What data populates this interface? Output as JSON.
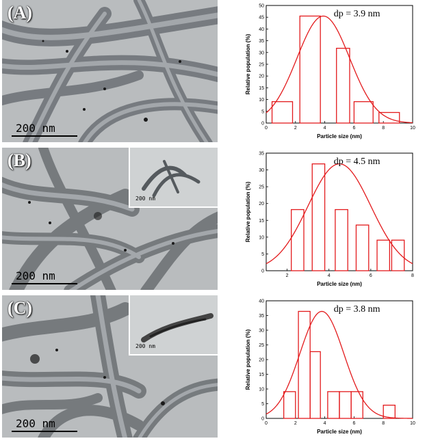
{
  "panels": [
    {
      "label": "(A)",
      "scale_label": "200 nm"
    },
    {
      "label": "(B)",
      "scale_label": "200 nm",
      "inset_scale_label": "200 nm"
    },
    {
      "label": "(C)",
      "scale_label": "200 nm",
      "inset_scale_label": "200 nm"
    }
  ],
  "colors": {
    "histogram": "#e31a1c",
    "tem_background": "#b9bcbe",
    "tube": "#6f7377"
  },
  "chart_data": [
    {
      "type": "bar",
      "annotation": "dp = 3.9 nm",
      "xlabel": "Particle size (nm)",
      "ylabel": "Relative population (%)",
      "xlim": [
        0,
        10
      ],
      "ylim": [
        0,
        50
      ],
      "xticks": [
        0,
        2,
        4,
        6,
        8,
        10
      ],
      "yticks": [
        0,
        5,
        10,
        15,
        20,
        25,
        30,
        35,
        40,
        45,
        50
      ],
      "bins": [
        [
          0.4,
          1.8
        ],
        [
          2.3,
          3.7
        ],
        [
          4.8,
          5.7
        ],
        [
          6.0,
          7.3
        ],
        [
          7.7,
          9.1
        ]
      ],
      "values": [
        9.1,
        45.5,
        31.8,
        9.1,
        4.5
      ],
      "fit": {
        "type": "gaussian",
        "mean": 3.9,
        "sigma": 1.8,
        "amplitude": 45.5
      }
    },
    {
      "type": "bar",
      "annotation": "dp = 4.5 nm",
      "xlabel": "Particle size (nm)",
      "ylabel": "Relative population (%)",
      "xlim": [
        1,
        8
      ],
      "ylim": [
        0,
        35
      ],
      "xticks": [
        2,
        4,
        6,
        8
      ],
      "yticks": [
        0,
        5,
        10,
        15,
        20,
        25,
        30,
        35
      ],
      "bins": [
        [
          2.2,
          2.8
        ],
        [
          3.2,
          3.8
        ],
        [
          4.3,
          4.9
        ],
        [
          5.3,
          5.9
        ],
        [
          6.3,
          6.9
        ],
        [
          7.0,
          7.6
        ]
      ],
      "values": [
        18.2,
        31.8,
        18.2,
        13.6,
        9.1,
        9.1
      ],
      "fit": {
        "type": "gaussian",
        "mean": 4.5,
        "sigma": 1.5,
        "amplitude": 31.8
      }
    },
    {
      "type": "bar",
      "annotation": "dp = 3.8 nm",
      "xlabel": "Particle size (nm)",
      "ylabel": "Relative population (%)",
      "xlim": [
        0,
        10
      ],
      "ylim": [
        0,
        40
      ],
      "xticks": [
        0,
        2,
        4,
        6,
        8,
        10
      ],
      "yticks": [
        0,
        5,
        10,
        15,
        20,
        25,
        30,
        35,
        40
      ],
      "bins": [
        [
          1.2,
          2.0
        ],
        [
          2.2,
          3.0
        ],
        [
          3.0,
          3.7
        ],
        [
          4.2,
          5.0
        ],
        [
          5.0,
          5.8
        ],
        [
          5.8,
          6.6
        ],
        [
          8.0,
          8.8
        ]
      ],
      "values": [
        9.1,
        36.4,
        22.7,
        9.1,
        9.1,
        9.1,
        4.5
      ],
      "fit": {
        "type": "gaussian",
        "mean": 3.8,
        "sigma": 1.5,
        "amplitude": 36.4
      }
    }
  ]
}
